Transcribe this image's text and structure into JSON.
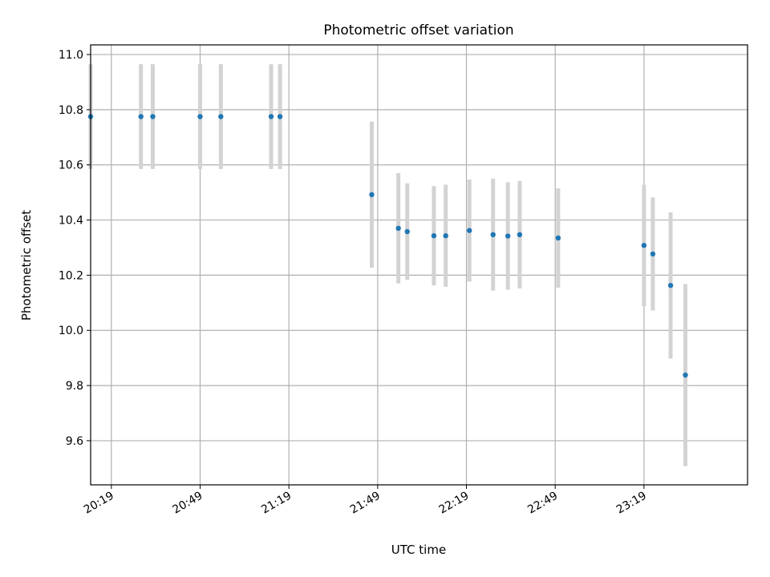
{
  "chart_data": {
    "type": "scatter",
    "title": "Photometric offset variation",
    "xlabel": "UTC time",
    "ylabel": "Photometric offset",
    "x_tick_labels": [
      "20:19",
      "20:49",
      "21:19",
      "21:49",
      "22:19",
      "22:49",
      "23:19"
    ],
    "y_tick_labels": [
      "9.6",
      "9.8",
      "10.0",
      "10.2",
      "10.4",
      "10.6",
      "10.8",
      "11.0"
    ],
    "xlim": [
      "20:12",
      "23:54"
    ],
    "ylim": [
      9.44,
      11.035
    ],
    "grid": true,
    "colors": {
      "point": "#1f77b4",
      "errorbar": "#d3d3d3",
      "grid": "#b0b0b0"
    },
    "points": [
      {
        "x": "20:12",
        "y": 10.775,
        "yerr": 0.19
      },
      {
        "x": "20:29",
        "y": 10.775,
        "yerr": 0.19
      },
      {
        "x": "20:33",
        "y": 10.775,
        "yerr": 0.19
      },
      {
        "x": "20:49",
        "y": 10.775,
        "yerr": 0.19
      },
      {
        "x": "20:56",
        "y": 10.775,
        "yerr": 0.19
      },
      {
        "x": "21:13",
        "y": 10.775,
        "yerr": 0.19
      },
      {
        "x": "21:16",
        "y": 10.775,
        "yerr": 0.19
      },
      {
        "x": "21:47",
        "y": 10.492,
        "yerr": 0.265
      },
      {
        "x": "21:56",
        "y": 10.37,
        "yerr": 0.2
      },
      {
        "x": "21:59",
        "y": 10.358,
        "yerr": 0.175
      },
      {
        "x": "22:08",
        "y": 10.343,
        "yerr": 0.18
      },
      {
        "x": "22:12",
        "y": 10.343,
        "yerr": 0.185
      },
      {
        "x": "22:20",
        "y": 10.362,
        "yerr": 0.185
      },
      {
        "x": "22:28",
        "y": 10.347,
        "yerr": 0.203
      },
      {
        "x": "22:33",
        "y": 10.342,
        "yerr": 0.195
      },
      {
        "x": "22:37",
        "y": 10.347,
        "yerr": 0.195
      },
      {
        "x": "22:50",
        "y": 10.335,
        "yerr": 0.18
      },
      {
        "x": "23:19",
        "y": 10.308,
        "yerr": 0.22
      },
      {
        "x": "23:22",
        "y": 10.277,
        "yerr": 0.205
      },
      {
        "x": "23:28",
        "y": 10.163,
        "yerr": 0.265
      },
      {
        "x": "23:33",
        "y": 9.838,
        "yerr": 0.33
      }
    ]
  }
}
